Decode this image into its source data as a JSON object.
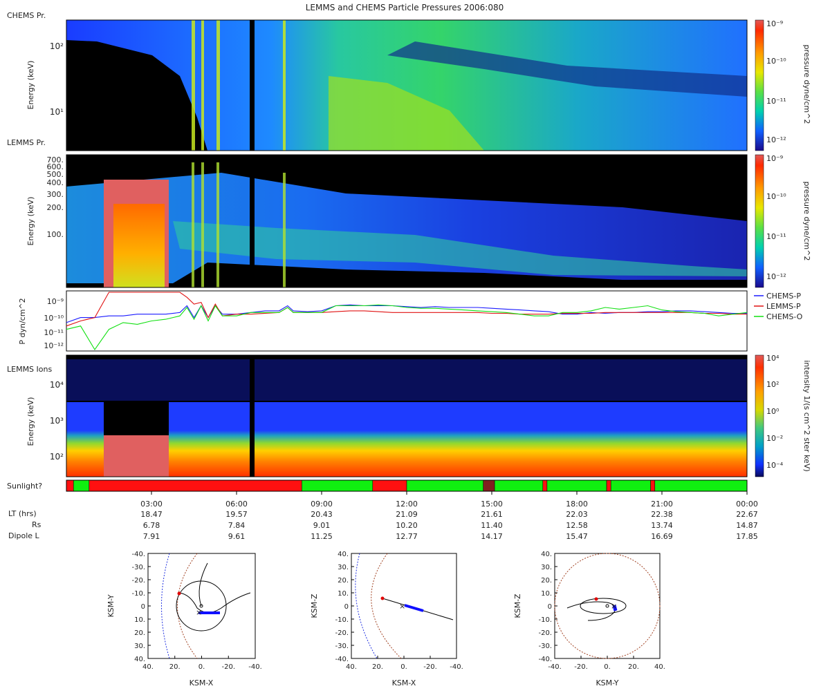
{
  "title": "LEMMS and CHEMS Particle Pressures  2006:080",
  "panels": {
    "chems": {
      "side_label": "CHEMS Pr.",
      "ylabel": "Energy (keV)",
      "yticks": [
        "10²",
        "10¹"
      ],
      "colorbar": {
        "label": "pressure dyne/cm^2",
        "ticks": [
          "10⁻⁹",
          "10⁻¹⁰",
          "10⁻¹¹",
          "10⁻¹²"
        ]
      }
    },
    "lemms": {
      "side_label": "LEMMS Pr.",
      "ylabel": "Energy (keV)",
      "yticks": [
        "700.",
        "600.",
        "500.",
        "400.",
        "300.",
        "200.",
        "100."
      ],
      "colorbar": {
        "label": "pressure dyne/cm^2",
        "ticks": [
          "10⁻⁹",
          "10⁻¹⁰",
          "10⁻¹¹",
          "10⁻¹²"
        ]
      }
    },
    "pressure": {
      "ylabel": "P dyn/cm^2",
      "yticks": [
        "10⁻⁹",
        "10⁻¹⁰",
        "10⁻¹¹",
        "10⁻¹²"
      ]
    },
    "ions": {
      "side_label": "LEMMS Ions",
      "ylabel": "Energy (keV)",
      "yticks": [
        "10⁴",
        "10³",
        "10²"
      ],
      "colorbar": {
        "label": "intensity 1/(s cm^2 ster keV)",
        "ticks": [
          "10⁴",
          "10²",
          "10⁰",
          "10⁻²",
          "10⁻⁴"
        ]
      }
    },
    "sunlight": {
      "label": "Sunlight?",
      "segments": [
        {
          "start": 0.0,
          "end": 0.25,
          "state": "dark"
        },
        {
          "start": 0.25,
          "end": 0.8,
          "state": "sun"
        },
        {
          "start": 0.8,
          "end": 8.3,
          "state": "dark"
        },
        {
          "start": 8.3,
          "end": 10.8,
          "state": "sun"
        },
        {
          "start": 10.8,
          "end": 12.0,
          "state": "dark"
        },
        {
          "start": 12.0,
          "end": 14.7,
          "state": "sun"
        },
        {
          "start": 14.7,
          "end": 15.1,
          "state": "mixed"
        },
        {
          "start": 15.1,
          "end": 16.8,
          "state": "sun"
        },
        {
          "start": 16.8,
          "end": 16.95,
          "state": "dark"
        },
        {
          "start": 16.95,
          "end": 19.05,
          "state": "sun"
        },
        {
          "start": 19.05,
          "end": 19.2,
          "state": "dark"
        },
        {
          "start": 19.2,
          "end": 20.6,
          "state": "sun"
        },
        {
          "start": 20.6,
          "end": 20.75,
          "state": "dark"
        },
        {
          "start": 20.75,
          "end": 24.0,
          "state": "sun"
        }
      ]
    }
  },
  "time_axis": {
    "ticks": [
      "03:00",
      "06:00",
      "09:00",
      "12:00",
      "15:00",
      "18:00",
      "21:00",
      "00:00"
    ],
    "rows": [
      {
        "label": "LT (hrs)",
        "values": [
          "18.47",
          "19.57",
          "20.43",
          "21.09",
          "21.61",
          "22.03",
          "22.38",
          "22.67"
        ]
      },
      {
        "label": "Rs",
        "values": [
          "6.78",
          "7.84",
          "9.01",
          "10.20",
          "11.40",
          "12.58",
          "13.74",
          "14.87"
        ]
      },
      {
        "label": "Dipole L",
        "values": [
          "7.91",
          "9.61",
          "11.25",
          "12.77",
          "14.17",
          "15.47",
          "16.69",
          "17.85"
        ]
      }
    ]
  },
  "orbits": [
    {
      "xlabel": "KSM-X",
      "ylabel": "KSM-Y",
      "xticks": [
        "40.",
        "20.",
        "0.",
        "-20.",
        "-40."
      ],
      "yticks": [
        "-40.",
        "-30.",
        "-20.",
        "-10.",
        "0",
        "10.",
        "20.",
        "30.",
        "40."
      ]
    },
    {
      "xlabel": "KSM-X",
      "ylabel": "KSM-Z",
      "xticks": [
        "40.",
        "20.",
        "0.",
        "-20.",
        "-40."
      ],
      "yticks": [
        "40.",
        "30.",
        "20.",
        "10.",
        "0",
        "-10.",
        "-20.",
        "-30.",
        "-40."
      ]
    },
    {
      "xlabel": "KSM-Y",
      "ylabel": "KSM-Z",
      "xticks": [
        "-40.",
        "-20.",
        "0.",
        "20.",
        "40."
      ],
      "yticks": [
        "40.",
        "30.",
        "20.",
        "10.",
        "0",
        "-10.",
        "-20.",
        "-30.",
        "-40."
      ]
    }
  ],
  "chart_data": {
    "type": "line",
    "title": "LEMMS and CHEMS Particle Pressures  2006:080",
    "xlabel": "",
    "ylabel": "P dyn/cm^2",
    "x_range_hours": [
      0,
      24
    ],
    "ylim_log10": [
      -12.2,
      -8.8
    ],
    "legend": {
      "placement": "right"
    },
    "x_hours": [
      0,
      0.5,
      1,
      1.5,
      2,
      2.5,
      3,
      3.5,
      4,
      4.25,
      4.5,
      4.75,
      5,
      5.25,
      5.5,
      6,
      6.5,
      7,
      7.5,
      7.8,
      8,
      8.5,
      9,
      9.5,
      10,
      10.5,
      11,
      11.5,
      12,
      12.5,
      13,
      13.5,
      14,
      14.5,
      15,
      15.5,
      16,
      16.5,
      17,
      17.5,
      18,
      18.5,
      19,
      19.5,
      20,
      20.5,
      21,
      21.5,
      22,
      22.5,
      23,
      23.5,
      24
    ],
    "series": [
      {
        "name": "CHEMS-P",
        "color": "#1a1aff",
        "log10_values": [
          -10.6,
          -10.3,
          -10.3,
          -10.2,
          -10.2,
          -10.1,
          -10.1,
          -10.1,
          -10.0,
          -9.6,
          -10.3,
          -9.6,
          -10.3,
          -9.6,
          -10.1,
          -10.1,
          -10.0,
          -9.9,
          -9.9,
          -9.6,
          -9.9,
          -9.95,
          -9.9,
          -9.6,
          -9.55,
          -9.6,
          -9.6,
          -9.6,
          -9.65,
          -9.7,
          -9.65,
          -9.7,
          -9.7,
          -9.7,
          -9.75,
          -9.8,
          -9.85,
          -9.9,
          -9.95,
          -10.1,
          -10.1,
          -10.0,
          -10.05,
          -10.0,
          -10.0,
          -9.95,
          -9.95,
          -9.9,
          -9.9,
          -9.95,
          -10.0,
          -10.05,
          -10.05
        ]
      },
      {
        "name": "LEMMS-P",
        "color": "#e01010",
        "log10_values": [
          -10.8,
          -10.5,
          -10.3,
          -8.8,
          -8.8,
          -8.8,
          -8.8,
          -8.8,
          -8.8,
          -9.1,
          -9.5,
          -9.4,
          -10.3,
          -9.5,
          -10.2,
          -10.1,
          -10.1,
          -10.05,
          -10.0,
          -9.7,
          -10.0,
          -10.0,
          -10.0,
          -9.95,
          -9.9,
          -9.9,
          -9.95,
          -10.0,
          -10.0,
          -10.0,
          -10.0,
          -10.0,
          -10.0,
          -10.0,
          -10.05,
          -10.05,
          -10.1,
          -10.1,
          -10.1,
          -10.05,
          -10.05,
          -10.05,
          -10.0,
          -10.0,
          -10.0,
          -10.0,
          -10.0,
          -10.0,
          -10.0,
          -10.05,
          -10.05,
          -10.1,
          -10.1
        ]
      },
      {
        "name": "CHEMS-O",
        "color": "#10e010",
        "log10_values": [
          -11.0,
          -10.8,
          -12.2,
          -11.0,
          -10.6,
          -10.7,
          -10.5,
          -10.4,
          -10.2,
          -9.7,
          -10.4,
          -9.6,
          -10.5,
          -9.6,
          -10.2,
          -10.2,
          -10.0,
          -10.0,
          -10.0,
          -9.7,
          -10.0,
          -10.0,
          -10.0,
          -9.6,
          -9.6,
          -9.6,
          -9.55,
          -9.6,
          -9.7,
          -9.75,
          -9.75,
          -9.8,
          -9.85,
          -9.9,
          -9.95,
          -10.0,
          -10.1,
          -10.2,
          -10.2,
          -10.0,
          -10.0,
          -9.9,
          -9.7,
          -9.8,
          -9.7,
          -9.6,
          -9.85,
          -9.95,
          -10.0,
          -10.05,
          -10.2,
          -10.1,
          -10.0
        ]
      }
    ]
  }
}
